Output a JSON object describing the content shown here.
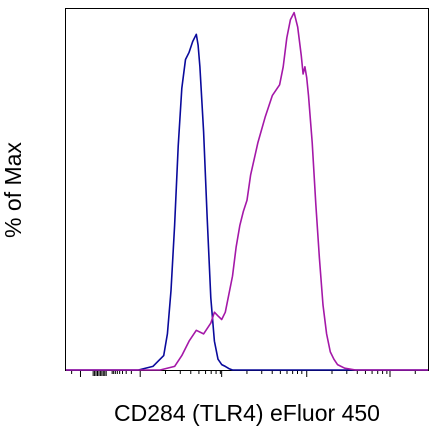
{
  "chart_data": {
    "type": "line",
    "title": "",
    "xlabel": "CD284 (TLR4) eFluor 450",
    "ylabel": "% of Max",
    "x_scale": "biexponential",
    "ylim": [
      0,
      100
    ],
    "grid": false,
    "legend": "none",
    "series": [
      {
        "color": "#0a0a9c",
        "x": [
          0.0,
          0.2,
          0.24,
          0.27,
          0.28,
          0.29,
          0.3,
          0.31,
          0.32,
          0.33,
          0.34,
          0.35,
          0.36,
          0.365,
          0.37,
          0.38,
          0.39,
          0.4,
          0.41,
          0.42,
          0.43,
          0.44,
          0.45,
          0.46,
          1.0
        ],
        "y": [
          0,
          0,
          1,
          4,
          10,
          22,
          40,
          62,
          78,
          86,
          88,
          91,
          93,
          90,
          84,
          66,
          42,
          20,
          8,
          3,
          1.5,
          1,
          0.4,
          0,
          0
        ]
      },
      {
        "color": "#a418a8",
        "x": [
          0.0,
          0.26,
          0.3,
          0.32,
          0.34,
          0.36,
          0.38,
          0.4,
          0.41,
          0.42,
          0.43,
          0.44,
          0.46,
          0.47,
          0.48,
          0.49,
          0.5,
          0.51,
          0.53,
          0.55,
          0.57,
          0.59,
          0.6,
          0.61,
          0.62,
          0.63,
          0.64,
          0.65,
          0.655,
          0.66,
          0.665,
          0.67,
          0.68,
          0.69,
          0.7,
          0.71,
          0.72,
          0.73,
          0.74,
          0.75,
          0.77,
          0.8,
          1.0
        ],
        "y": [
          0,
          0,
          1,
          4,
          8,
          11,
          10,
          13,
          16,
          15,
          14,
          16,
          26,
          34,
          40,
          44,
          47,
          54,
          63,
          70,
          76,
          79,
          84,
          92,
          97,
          99,
          95,
          87,
          82,
          84,
          81,
          76,
          63,
          46,
          31,
          18,
          10,
          5,
          3,
          1.5,
          0.5,
          0,
          0
        ]
      }
    ]
  }
}
